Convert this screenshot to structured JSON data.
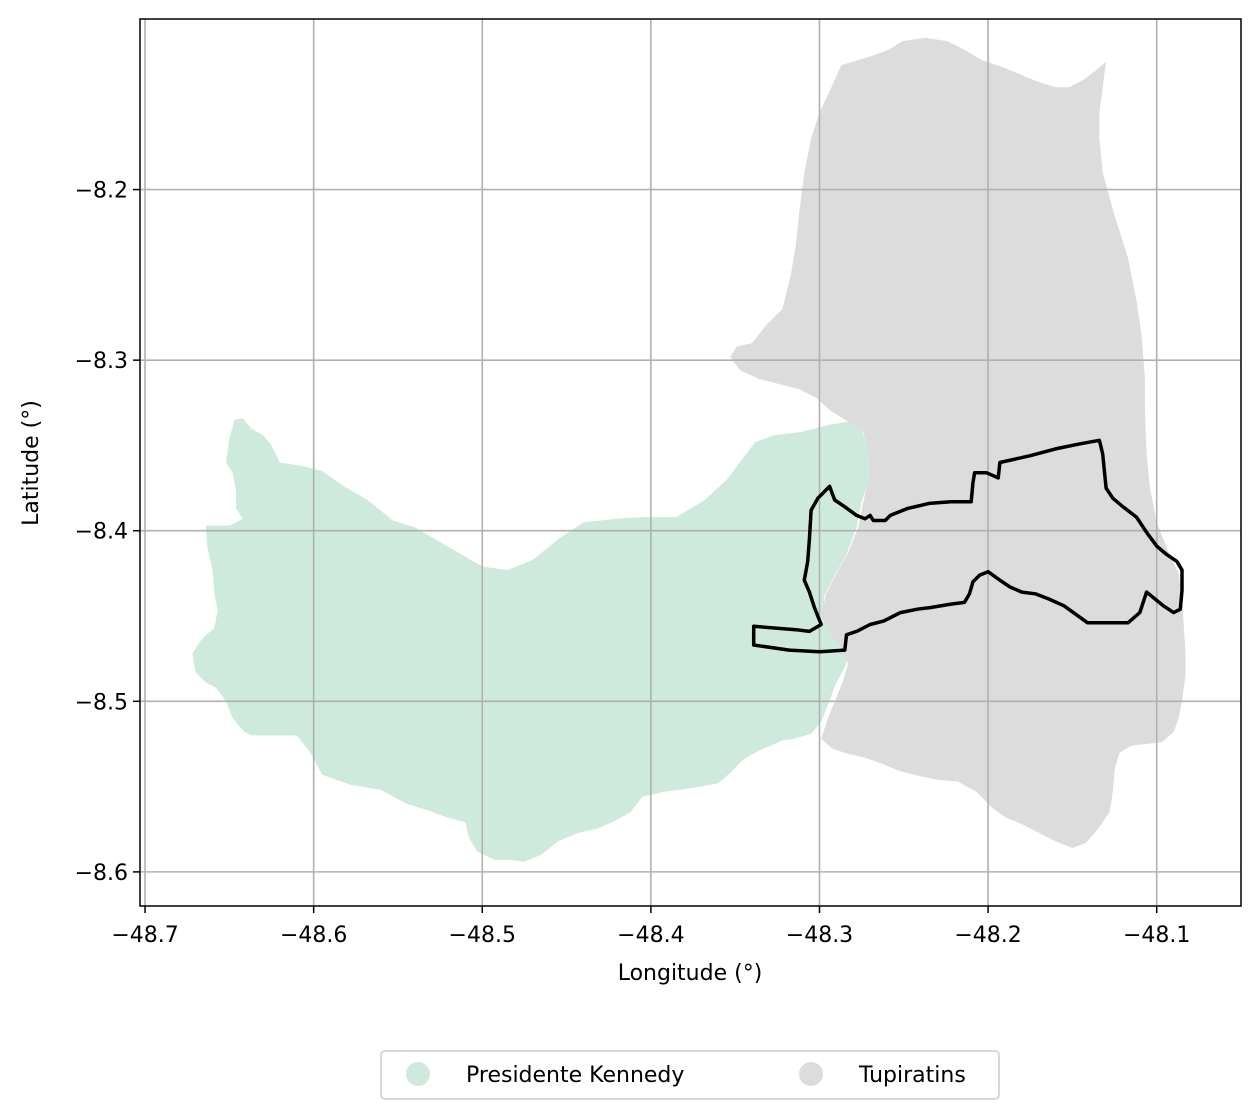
{
  "chart_data": {
    "type": "map",
    "xlabel": "Longitude (°)",
    "ylabel": "Latitude (°)",
    "xlim": [
      -48.703,
      -48.05
    ],
    "ylim": [
      -8.62,
      -8.1
    ],
    "xticks": [
      -48.7,
      -48.6,
      -48.5,
      -48.4,
      -48.3,
      -48.2,
      -48.1
    ],
    "yticks": [
      -8.2,
      -8.3,
      -8.4,
      -8.5,
      -8.6
    ],
    "xtick_labels": [
      "−48.7",
      "−48.6",
      "−48.5",
      "−48.4",
      "−48.3",
      "−48.2",
      "−48.1"
    ],
    "ytick_labels": [
      "−8.2",
      "−8.3",
      "−8.4",
      "−8.5",
      "−8.6"
    ],
    "grid": true,
    "legend_position": "bottom-center",
    "regions": [
      {
        "name": "Presidente Kennedy",
        "color": "#ceeadd",
        "outline": [
          [
            -48.664,
            -8.397
          ],
          [
            -48.65,
            -8.397
          ],
          [
            -48.642,
            -8.393
          ],
          [
            -48.646,
            -8.387
          ],
          [
            -48.646,
            -8.377
          ],
          [
            -48.648,
            -8.366
          ],
          [
            -48.652,
            -8.36
          ],
          [
            -48.65,
            -8.346
          ],
          [
            -48.647,
            -8.335
          ],
          [
            -48.642,
            -8.334
          ],
          [
            -48.637,
            -8.34
          ],
          [
            -48.63,
            -8.344
          ],
          [
            -48.625,
            -8.35
          ],
          [
            -48.62,
            -8.36
          ],
          [
            -48.607,
            -8.362
          ],
          [
            -48.595,
            -8.365
          ],
          [
            -48.582,
            -8.374
          ],
          [
            -48.568,
            -8.382
          ],
          [
            -48.553,
            -8.394
          ],
          [
            -48.54,
            -8.398
          ],
          [
            -48.5,
            -8.421
          ],
          [
            -48.485,
            -8.423
          ],
          [
            -48.47,
            -8.417
          ],
          [
            -48.455,
            -8.405
          ],
          [
            -48.44,
            -8.395
          ],
          [
            -48.42,
            -8.393
          ],
          [
            -48.405,
            -8.392
          ],
          [
            -48.385,
            -8.392
          ],
          [
            -48.368,
            -8.382
          ],
          [
            -48.355,
            -8.37
          ],
          [
            -48.345,
            -8.357
          ],
          [
            -48.338,
            -8.348
          ],
          [
            -48.327,
            -8.344
          ],
          [
            -48.31,
            -8.342
          ],
          [
            -48.295,
            -8.338
          ],
          [
            -48.283,
            -8.336
          ],
          [
            -48.276,
            -8.338
          ],
          [
            -48.273,
            -8.346
          ],
          [
            -48.27,
            -8.356
          ],
          [
            -48.269,
            -8.366
          ],
          [
            -48.275,
            -8.383
          ],
          [
            -48.278,
            -8.398
          ],
          [
            -48.284,
            -8.414
          ],
          [
            -48.291,
            -8.426
          ],
          [
            -48.297,
            -8.438
          ],
          [
            -48.298,
            -8.453
          ],
          [
            -48.289,
            -8.462
          ],
          [
            -48.282,
            -8.471
          ],
          [
            -48.285,
            -8.48
          ],
          [
            -48.29,
            -8.489
          ],
          [
            -48.295,
            -8.502
          ],
          [
            -48.299,
            -8.512
          ],
          [
            -48.305,
            -8.519
          ],
          [
            -48.315,
            -8.522
          ],
          [
            -48.322,
            -8.523
          ],
          [
            -48.336,
            -8.529
          ],
          [
            -48.345,
            -8.534
          ],
          [
            -48.353,
            -8.542
          ],
          [
            -48.36,
            -8.548
          ],
          [
            -48.376,
            -8.551
          ],
          [
            -48.392,
            -8.553
          ],
          [
            -48.405,
            -8.556
          ],
          [
            -48.412,
            -8.565
          ],
          [
            -48.423,
            -8.571
          ],
          [
            -48.433,
            -8.575
          ],
          [
            -48.443,
            -8.577
          ],
          [
            -48.455,
            -8.582
          ],
          [
            -48.465,
            -8.59
          ],
          [
            -48.475,
            -8.594
          ],
          [
            -48.484,
            -8.593
          ],
          [
            -48.493,
            -8.593
          ],
          [
            -48.503,
            -8.588
          ],
          [
            -48.508,
            -8.58
          ],
          [
            -48.51,
            -8.571
          ],
          [
            -48.521,
            -8.568
          ],
          [
            -48.532,
            -8.564
          ],
          [
            -48.545,
            -8.56
          ],
          [
            -48.56,
            -8.552
          ],
          [
            -48.578,
            -8.549
          ],
          [
            -48.595,
            -8.543
          ],
          [
            -48.602,
            -8.53
          ],
          [
            -48.61,
            -8.52
          ],
          [
            -48.623,
            -8.52
          ],
          [
            -48.637,
            -8.52
          ],
          [
            -48.641,
            -8.518
          ],
          [
            -48.648,
            -8.51
          ],
          [
            -48.652,
            -8.5
          ],
          [
            -48.658,
            -8.492
          ],
          [
            -48.664,
            -8.489
          ],
          [
            -48.67,
            -8.483
          ],
          [
            -48.672,
            -8.472
          ],
          [
            -48.666,
            -8.463
          ],
          [
            -48.659,
            -8.457
          ],
          [
            -48.657,
            -8.447
          ],
          [
            -48.659,
            -8.436
          ],
          [
            -48.66,
            -8.423
          ],
          [
            -48.663,
            -8.41
          ]
        ]
      },
      {
        "name": "Tupiratins",
        "color": "#dcdcdc",
        "outline": [
          [
            -48.353,
            -8.298
          ],
          [
            -48.349,
            -8.292
          ],
          [
            -48.34,
            -8.29
          ],
          [
            -48.332,
            -8.28
          ],
          [
            -48.322,
            -8.27
          ],
          [
            -48.317,
            -8.25
          ],
          [
            -48.314,
            -8.232
          ],
          [
            -48.312,
            -8.213
          ],
          [
            -48.309,
            -8.19
          ],
          [
            -48.305,
            -8.17
          ],
          [
            -48.3,
            -8.155
          ],
          [
            -48.292,
            -8.138
          ],
          [
            -48.287,
            -8.127
          ],
          [
            -48.27,
            -8.122
          ],
          [
            -48.259,
            -8.118
          ],
          [
            -48.251,
            -8.113
          ],
          [
            -48.237,
            -8.111
          ],
          [
            -48.224,
            -8.113
          ],
          [
            -48.214,
            -8.118
          ],
          [
            -48.204,
            -8.124
          ],
          [
            -48.192,
            -8.128
          ],
          [
            -48.182,
            -8.132
          ],
          [
            -48.17,
            -8.137
          ],
          [
            -48.16,
            -8.14
          ],
          [
            -48.152,
            -8.14
          ],
          [
            -48.144,
            -8.136
          ],
          [
            -48.136,
            -8.13
          ],
          [
            -48.13,
            -8.125
          ],
          [
            -48.132,
            -8.14
          ],
          [
            -48.134,
            -8.155
          ],
          [
            -48.134,
            -8.17
          ],
          [
            -48.132,
            -8.19
          ],
          [
            -48.125,
            -8.215
          ],
          [
            -48.117,
            -8.24
          ],
          [
            -48.112,
            -8.265
          ],
          [
            -48.109,
            -8.285
          ],
          [
            -48.107,
            -8.31
          ],
          [
            -48.107,
            -8.33
          ],
          [
            -48.106,
            -8.355
          ],
          [
            -48.104,
            -8.375
          ],
          [
            -48.1,
            -8.395
          ],
          [
            -48.094,
            -8.41
          ],
          [
            -48.087,
            -8.425
          ],
          [
            -48.085,
            -8.44
          ],
          [
            -48.084,
            -8.455
          ],
          [
            -48.083,
            -8.47
          ],
          [
            -48.083,
            -8.485
          ],
          [
            -48.085,
            -8.5
          ],
          [
            -48.087,
            -8.51
          ],
          [
            -48.09,
            -8.518
          ],
          [
            -48.097,
            -8.524
          ],
          [
            -48.107,
            -8.525
          ],
          [
            -48.115,
            -8.526
          ],
          [
            -48.122,
            -8.53
          ],
          [
            -48.125,
            -8.54
          ],
          [
            -48.126,
            -8.553
          ],
          [
            -48.128,
            -8.565
          ],
          [
            -48.135,
            -8.575
          ],
          [
            -48.142,
            -8.583
          ],
          [
            -48.15,
            -8.586
          ],
          [
            -48.16,
            -8.582
          ],
          [
            -48.17,
            -8.577
          ],
          [
            -48.18,
            -8.572
          ],
          [
            -48.19,
            -8.568
          ],
          [
            -48.198,
            -8.562
          ],
          [
            -48.207,
            -8.553
          ],
          [
            -48.218,
            -8.547
          ],
          [
            -48.23,
            -8.546
          ],
          [
            -48.24,
            -8.544
          ],
          [
            -48.252,
            -8.541
          ],
          [
            -48.262,
            -8.537
          ],
          [
            -48.273,
            -8.533
          ],
          [
            -48.282,
            -8.531
          ],
          [
            -48.292,
            -8.528
          ],
          [
            -48.299,
            -8.522
          ],
          [
            -48.295,
            -8.51
          ],
          [
            -48.29,
            -8.498
          ],
          [
            -48.286,
            -8.488
          ],
          [
            -48.283,
            -8.478
          ],
          [
            -48.287,
            -8.468
          ],
          [
            -48.294,
            -8.46
          ],
          [
            -48.299,
            -8.45
          ],
          [
            -48.296,
            -8.437
          ],
          [
            -48.29,
            -8.425
          ],
          [
            -48.283,
            -8.413
          ],
          [
            -48.277,
            -8.398
          ],
          [
            -48.274,
            -8.383
          ],
          [
            -48.27,
            -8.366
          ],
          [
            -48.271,
            -8.353
          ],
          [
            -48.274,
            -8.342
          ],
          [
            -48.283,
            -8.336
          ],
          [
            -48.293,
            -8.33
          ],
          [
            -48.302,
            -8.322
          ],
          [
            -48.312,
            -8.317
          ],
          [
            -48.324,
            -8.314
          ],
          [
            -48.336,
            -8.311
          ],
          [
            -48.347,
            -8.306
          ]
        ]
      }
    ],
    "overlay_outline": {
      "color": "#000000",
      "points": [
        [
          -48.339,
          -8.456
        ],
        [
          -48.314,
          -8.458
        ],
        [
          -48.306,
          -8.459
        ],
        [
          -48.299,
          -8.455
        ],
        [
          -48.303,
          -8.445
        ],
        [
          -48.306,
          -8.436
        ],
        [
          -48.309,
          -8.429
        ],
        [
          -48.307,
          -8.418
        ],
        [
          -48.306,
          -8.405
        ],
        [
          -48.305,
          -8.388
        ],
        [
          -48.301,
          -8.381
        ],
        [
          -48.297,
          -8.377
        ],
        [
          -48.294,
          -8.374
        ],
        [
          -48.291,
          -8.382
        ],
        [
          -48.285,
          -8.386
        ],
        [
          -48.278,
          -8.391
        ],
        [
          -48.273,
          -8.393
        ],
        [
          -48.27,
          -8.391
        ],
        [
          -48.268,
          -8.394
        ],
        [
          -48.261,
          -8.394
        ],
        [
          -48.258,
          -8.391
        ],
        [
          -48.248,
          -8.387
        ],
        [
          -48.235,
          -8.384
        ],
        [
          -48.222,
          -8.383
        ],
        [
          -48.21,
          -8.383
        ],
        [
          -48.209,
          -8.372
        ],
        [
          -48.208,
          -8.366
        ],
        [
          -48.201,
          -8.366
        ],
        [
          -48.194,
          -8.369
        ],
        [
          -48.193,
          -8.36
        ],
        [
          -48.175,
          -8.356
        ],
        [
          -48.16,
          -8.352
        ],
        [
          -48.145,
          -8.349
        ],
        [
          -48.134,
          -8.347
        ],
        [
          -48.132,
          -8.355
        ],
        [
          -48.131,
          -8.365
        ],
        [
          -48.13,
          -8.375
        ],
        [
          -48.126,
          -8.381
        ],
        [
          -48.12,
          -8.386
        ],
        [
          -48.112,
          -8.392
        ],
        [
          -48.106,
          -8.401
        ],
        [
          -48.1,
          -8.409
        ],
        [
          -48.094,
          -8.414
        ],
        [
          -48.088,
          -8.418
        ],
        [
          -48.085,
          -8.423
        ],
        [
          -48.085,
          -8.435
        ],
        [
          -48.086,
          -8.446
        ],
        [
          -48.09,
          -8.448
        ],
        [
          -48.096,
          -8.444
        ],
        [
          -48.101,
          -8.44
        ],
        [
          -48.106,
          -8.436
        ],
        [
          -48.11,
          -8.448
        ],
        [
          -48.117,
          -8.454
        ],
        [
          -48.124,
          -8.454
        ],
        [
          -48.132,
          -8.454
        ],
        [
          -48.141,
          -8.454
        ],
        [
          -48.148,
          -8.449
        ],
        [
          -48.155,
          -8.444
        ],
        [
          -48.164,
          -8.44
        ],
        [
          -48.172,
          -8.437
        ],
        [
          -48.18,
          -8.436
        ],
        [
          -48.187,
          -8.433
        ],
        [
          -48.193,
          -8.429
        ],
        [
          -48.2,
          -8.424
        ],
        [
          -48.205,
          -8.426
        ],
        [
          -48.209,
          -8.43
        ],
        [
          -48.211,
          -8.437
        ],
        [
          -48.214,
          -8.442
        ],
        [
          -48.222,
          -8.443
        ],
        [
          -48.234,
          -8.445
        ],
        [
          -48.242,
          -8.446
        ],
        [
          -48.252,
          -8.448
        ],
        [
          -48.262,
          -8.453
        ],
        [
          -48.27,
          -8.455
        ],
        [
          -48.278,
          -8.459
        ],
        [
          -48.284,
          -8.461
        ],
        [
          -48.285,
          -8.47
        ],
        [
          -48.3,
          -8.471
        ],
        [
          -48.318,
          -8.47
        ],
        [
          -48.339,
          -8.467
        ]
      ]
    },
    "legend": [
      {
        "label": "Presidente Kennedy",
        "color": "#ceeadd"
      },
      {
        "label": "Tupiratins",
        "color": "#dcdcdc"
      }
    ]
  }
}
